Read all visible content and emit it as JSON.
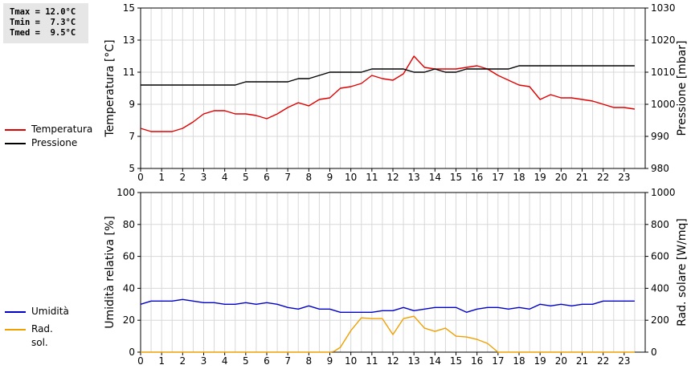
{
  "stats": [
    {
      "label": "Tmax = 12.0°C"
    },
    {
      "label": "Tmin =  7.3°C"
    },
    {
      "label": "Tmed =  9.5°C"
    }
  ],
  "chart_data": [
    {
      "type": "line",
      "xlim": [
        0,
        24
      ],
      "xticks": [
        0,
        1,
        2,
        3,
        4,
        5,
        6,
        7,
        8,
        9,
        10,
        11,
        12,
        13,
        14,
        15,
        16,
        17,
        18,
        19,
        20,
        21,
        22,
        23
      ],
      "grid": true,
      "ylabel_left": "Temperatura [°C]",
      "ylabel_right": "Pressione [mbar]",
      "ylim_left": [
        5,
        15
      ],
      "yticks_left": [
        5,
        7,
        9,
        11,
        13,
        15
      ],
      "ylim_right": [
        980,
        1030
      ],
      "yticks_right": [
        980,
        990,
        1000,
        1010,
        1020,
        1030
      ],
      "legend_placement": "left",
      "series": [
        {
          "name": "Temperatura",
          "axis": "left",
          "color": "#e00000",
          "x": [
            0,
            0.5,
            1,
            1.5,
            2,
            2.5,
            3,
            3.5,
            4,
            4.5,
            5,
            5.5,
            6,
            6.5,
            7,
            7.5,
            8,
            8.5,
            9,
            9.5,
            10,
            10.5,
            11,
            11.5,
            12,
            12.5,
            13,
            13.5,
            14,
            14.5,
            15,
            15.5,
            16,
            16.5,
            17,
            17.5,
            18,
            18.5,
            19,
            19.5,
            20,
            20.5,
            21,
            21.5,
            22,
            22.5,
            23,
            23.5
          ],
          "y": [
            7.5,
            7.3,
            7.3,
            7.3,
            7.5,
            7.9,
            8.4,
            8.6,
            8.6,
            8.4,
            8.4,
            8.3,
            8.1,
            8.4,
            8.8,
            9.1,
            8.9,
            9.3,
            9.4,
            10.0,
            10.1,
            10.3,
            10.8,
            10.6,
            10.5,
            10.9,
            12.0,
            11.3,
            11.2,
            11.2,
            11.2,
            11.3,
            11.4,
            11.2,
            10.8,
            10.5,
            10.2,
            10.1,
            9.3,
            9.6,
            9.4,
            9.4,
            9.3,
            9.2,
            9.0,
            8.8,
            8.8,
            8.7
          ]
        },
        {
          "name": "Pressione",
          "axis": "right",
          "color": "#000000",
          "x": [
            0,
            0.5,
            1,
            1.5,
            2,
            2.5,
            3,
            3.5,
            4,
            4.5,
            5,
            5.5,
            6,
            6.5,
            7,
            7.5,
            8,
            8.5,
            9,
            9.5,
            10,
            10.5,
            11,
            11.5,
            12,
            12.5,
            13,
            13.5,
            14,
            14.5,
            15,
            15.5,
            16,
            16.5,
            17,
            17.5,
            18,
            18.5,
            19,
            19.5,
            20,
            20.5,
            21,
            21.5,
            22,
            22.5,
            23,
            23.5
          ],
          "y": [
            1006,
            1006,
            1006,
            1006,
            1006,
            1006,
            1006,
            1006,
            1006,
            1006,
            1007,
            1007,
            1007,
            1007,
            1007,
            1008,
            1008,
            1009,
            1010,
            1010,
            1010,
            1010,
            1011,
            1011,
            1011,
            1011,
            1010,
            1010,
            1011,
            1010,
            1010,
            1011,
            1011,
            1011,
            1011,
            1011,
            1012,
            1012,
            1012,
            1012,
            1012,
            1012,
            1012,
            1012,
            1012,
            1012,
            1012,
            1012
          ]
        }
      ]
    },
    {
      "type": "line",
      "xlim": [
        0,
        24
      ],
      "xticks": [
        0,
        1,
        2,
        3,
        4,
        5,
        6,
        7,
        8,
        9,
        10,
        11,
        12,
        13,
        14,
        15,
        16,
        17,
        18,
        19,
        20,
        21,
        22,
        23
      ],
      "grid": true,
      "ylabel_left": "Umidità relativa [%]",
      "ylabel_right": "Rad. solare [W/mq]",
      "ylim_left": [
        0,
        100
      ],
      "yticks_left": [
        0,
        20,
        40,
        60,
        80,
        100
      ],
      "ylim_right": [
        0,
        1000
      ],
      "yticks_right": [
        0,
        200,
        400,
        600,
        800,
        1000
      ],
      "legend_placement": "left",
      "series": [
        {
          "name": "Umidità",
          "axis": "left",
          "color": "#0000c8",
          "x": [
            0,
            0.5,
            1,
            1.5,
            2,
            2.5,
            3,
            3.5,
            4,
            4.5,
            5,
            5.5,
            6,
            6.5,
            7,
            7.5,
            8,
            8.5,
            9,
            9.5,
            10,
            10.5,
            11,
            11.5,
            12,
            12.5,
            13,
            13.5,
            14,
            14.5,
            15,
            15.5,
            16,
            16.5,
            17,
            17.5,
            18,
            18.5,
            19,
            19.5,
            20,
            20.5,
            21,
            21.5,
            22,
            22.5,
            23,
            23.5
          ],
          "y": [
            30,
            32,
            32,
            32,
            33,
            32,
            31,
            31,
            30,
            30,
            31,
            30,
            31,
            30,
            28,
            27,
            29,
            27,
            27,
            25,
            25,
            25,
            25,
            26,
            26,
            28,
            26,
            27,
            28,
            28,
            28,
            25,
            27,
            28,
            28,
            27,
            28,
            27,
            30,
            29,
            30,
            29,
            30,
            30,
            32,
            32,
            32,
            32
          ]
        },
        {
          "name": "Rad. sol.",
          "axis": "right",
          "color": "#f0a000",
          "x": [
            0,
            1,
            2,
            3,
            4,
            5,
            6,
            7,
            8,
            9,
            9.2,
            9.5,
            10,
            10.5,
            11,
            11.5,
            12,
            12.5,
            13,
            13.5,
            14,
            14.5,
            15,
            15.5,
            16,
            16.5,
            17,
            18,
            19,
            20,
            21,
            22,
            23,
            23.5
          ],
          "y": [
            0,
            0,
            0,
            0,
            0,
            0,
            0,
            0,
            0,
            0,
            5,
            30,
            135,
            215,
            210,
            210,
            110,
            210,
            225,
            150,
            130,
            150,
            100,
            95,
            80,
            55,
            0,
            0,
            0,
            0,
            0,
            0,
            0,
            0
          ]
        }
      ]
    }
  ]
}
